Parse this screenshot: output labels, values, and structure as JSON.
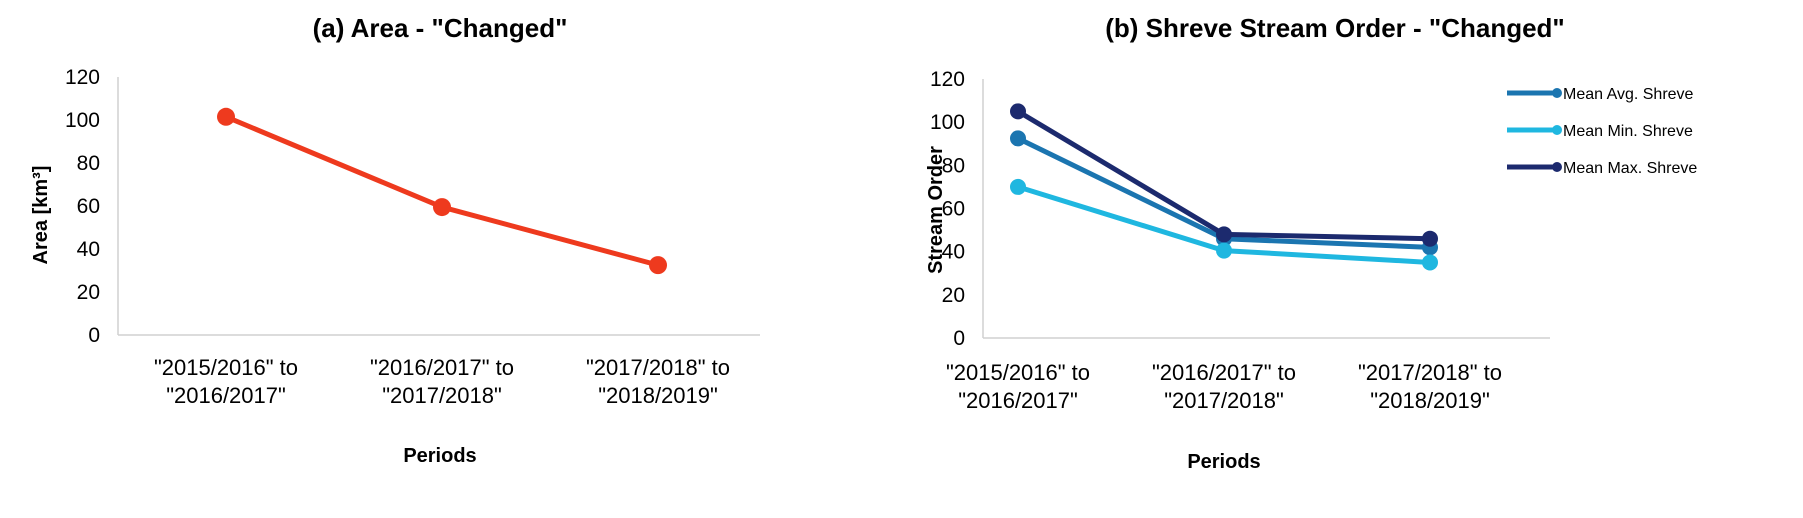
{
  "chart_data": [
    {
      "type": "line",
      "title": "(a) Area - \"Changed\"",
      "xlabel": "Periods",
      "ylabel": "Area [km³]",
      "ylim": [
        0,
        120
      ],
      "yticks": [
        "0",
        "20",
        "40",
        "60",
        "80",
        "100",
        "120"
      ],
      "categories": [
        [
          "\"2015/2016\" to",
          "\"2016/2017\""
        ],
        [
          "\"2016/2017\" to",
          "\"2017/2018\""
        ],
        [
          "\"2017/2018\" to",
          "\"2018/2019\""
        ]
      ],
      "series": [
        {
          "values": [
            101.5,
            59.5,
            32.5
          ],
          "color": "#ee3a1e"
        }
      ],
      "grid": false,
      "legend": "none"
    },
    {
      "type": "line",
      "title": "(b) Shreve Stream Order - \"Changed\"",
      "xlabel": "Periods",
      "ylabel": "Stream Order",
      "ylim": [
        0,
        120
      ],
      "yticks": [
        "0",
        "20",
        "40",
        "60",
        "80",
        "100",
        "120"
      ],
      "categories": [
        [
          "\"2015/2016\" to",
          "\"2016/2017\""
        ],
        [
          "\"2016/2017\" to",
          "\"2017/2018\""
        ],
        [
          "\"2017/2018\" to",
          "\"2018/2019\""
        ]
      ],
      "series": [
        {
          "name": "Mean Avg. Shreve",
          "values": [
            92.5,
            46,
            42
          ],
          "color": "#1b75b0"
        },
        {
          "name": "Mean Min. Shreve",
          "values": [
            70,
            40.5,
            35
          ],
          "color": "#1fb7e0"
        },
        {
          "name": "Mean Max. Shreve",
          "values": [
            105,
            48,
            46
          ],
          "color": "#1c2a6e"
        }
      ],
      "grid": false,
      "legend": "top-right"
    }
  ]
}
